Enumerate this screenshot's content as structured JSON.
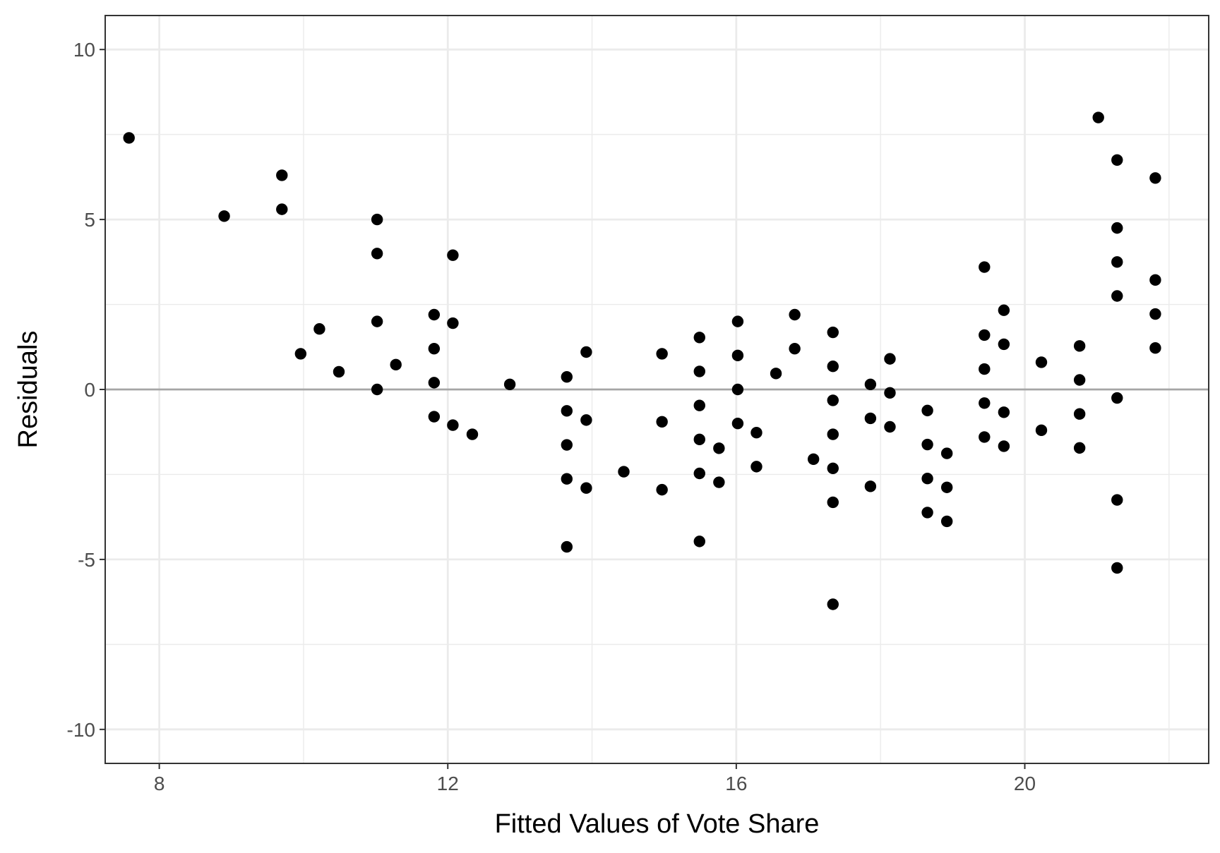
{
  "chart_data": {
    "type": "scatter",
    "title": "",
    "xlabel": "Fitted Values of Vote Share",
    "ylabel": "Residuals",
    "xlim": [
      7.25,
      22.55
    ],
    "ylim": [
      -11,
      11
    ],
    "x_ticks": [
      8,
      12,
      16,
      20
    ],
    "x_tick_labels": [
      "8",
      "12",
      "16",
      "20"
    ],
    "y_ticks": [
      -10,
      -5,
      0,
      5,
      10
    ],
    "y_tick_labels": [
      "-10",
      "-5",
      "0",
      "5",
      "10"
    ],
    "grid": true,
    "reference_line": {
      "y": 0,
      "color": "#a6a6a6"
    },
    "colors": {
      "background": "#ffffff",
      "grid": "#ebebeb",
      "panel_border": "#333333",
      "point": "#000000"
    },
    "points": [
      {
        "x": 7.58,
        "y": 7.4
      },
      {
        "x": 8.9,
        "y": 5.1
      },
      {
        "x": 9.7,
        "y": 6.3
      },
      {
        "x": 9.7,
        "y": 5.3
      },
      {
        "x": 9.96,
        "y": 1.05
      },
      {
        "x": 10.22,
        "y": 1.78
      },
      {
        "x": 10.49,
        "y": 0.52
      },
      {
        "x": 11.02,
        "y": 5.0
      },
      {
        "x": 11.02,
        "y": 4.0
      },
      {
        "x": 11.02,
        "y": 2.0
      },
      {
        "x": 11.02,
        "y": 0.0
      },
      {
        "x": 11.28,
        "y": 0.73
      },
      {
        "x": 11.81,
        "y": 2.2
      },
      {
        "x": 11.81,
        "y": 1.2
      },
      {
        "x": 11.81,
        "y": 0.2
      },
      {
        "x": 11.81,
        "y": -0.8
      },
      {
        "x": 12.07,
        "y": 3.95
      },
      {
        "x": 12.07,
        "y": 1.95
      },
      {
        "x": 12.07,
        "y": -1.05
      },
      {
        "x": 12.34,
        "y": -1.32
      },
      {
        "x": 12.86,
        "y": 0.15
      },
      {
        "x": 13.65,
        "y": 0.37
      },
      {
        "x": 13.65,
        "y": -0.63
      },
      {
        "x": 13.65,
        "y": -1.63
      },
      {
        "x": 13.65,
        "y": -2.63
      },
      {
        "x": 13.65,
        "y": -4.63
      },
      {
        "x": 13.92,
        "y": 1.1
      },
      {
        "x": 13.92,
        "y": -0.9
      },
      {
        "x": 13.92,
        "y": -2.9
      },
      {
        "x": 14.44,
        "y": -2.42
      },
      {
        "x": 14.97,
        "y": 1.05
      },
      {
        "x": 14.97,
        "y": -0.95
      },
      {
        "x": 14.97,
        "y": -2.95
      },
      {
        "x": 15.49,
        "y": 1.53
      },
      {
        "x": 15.49,
        "y": 0.53
      },
      {
        "x": 15.49,
        "y": -0.47
      },
      {
        "x": 15.49,
        "y": -1.47
      },
      {
        "x": 15.49,
        "y": -2.47
      },
      {
        "x": 15.49,
        "y": -4.47
      },
      {
        "x": 15.76,
        "y": -1.73
      },
      {
        "x": 15.76,
        "y": -2.73
      },
      {
        "x": 16.02,
        "y": 2.0
      },
      {
        "x": 16.02,
        "y": 1.0
      },
      {
        "x": 16.02,
        "y": 0.0
      },
      {
        "x": 16.02,
        "y": -1.0
      },
      {
        "x": 16.28,
        "y": -1.27
      },
      {
        "x": 16.28,
        "y": -2.27
      },
      {
        "x": 16.55,
        "y": 0.47
      },
      {
        "x": 16.81,
        "y": 2.2
      },
      {
        "x": 16.81,
        "y": 1.2
      },
      {
        "x": 17.07,
        "y": -2.05
      },
      {
        "x": 17.34,
        "y": 1.68
      },
      {
        "x": 17.34,
        "y": 0.68
      },
      {
        "x": 17.34,
        "y": -0.32
      },
      {
        "x": 17.34,
        "y": -1.32
      },
      {
        "x": 17.34,
        "y": -2.32
      },
      {
        "x": 17.34,
        "y": -3.32
      },
      {
        "x": 17.34,
        "y": -6.32
      },
      {
        "x": 17.86,
        "y": 0.15
      },
      {
        "x": 17.86,
        "y": -0.85
      },
      {
        "x": 17.86,
        "y": -2.85
      },
      {
        "x": 18.13,
        "y": 0.9
      },
      {
        "x": 18.13,
        "y": -0.1
      },
      {
        "x": 18.13,
        "y": -1.1
      },
      {
        "x": 18.65,
        "y": -0.62
      },
      {
        "x": 18.65,
        "y": -1.62
      },
      {
        "x": 18.65,
        "y": -2.62
      },
      {
        "x": 18.65,
        "y": -3.62
      },
      {
        "x": 18.92,
        "y": -1.88
      },
      {
        "x": 18.92,
        "y": -2.88
      },
      {
        "x": 18.92,
        "y": -3.88
      },
      {
        "x": 19.44,
        "y": 3.6
      },
      {
        "x": 19.44,
        "y": 1.6
      },
      {
        "x": 19.44,
        "y": 0.6
      },
      {
        "x": 19.44,
        "y": -0.4
      },
      {
        "x": 19.44,
        "y": -1.4
      },
      {
        "x": 19.71,
        "y": 2.33
      },
      {
        "x": 19.71,
        "y": 1.33
      },
      {
        "x": 19.71,
        "y": -0.67
      },
      {
        "x": 19.71,
        "y": -1.67
      },
      {
        "x": 20.23,
        "y": 0.8
      },
      {
        "x": 20.23,
        "y": -1.2
      },
      {
        "x": 20.76,
        "y": 1.28
      },
      {
        "x": 20.76,
        "y": 0.28
      },
      {
        "x": 20.76,
        "y": -0.72
      },
      {
        "x": 20.76,
        "y": -1.72
      },
      {
        "x": 21.02,
        "y": 8.0
      },
      {
        "x": 21.28,
        "y": 6.75
      },
      {
        "x": 21.28,
        "y": 4.75
      },
      {
        "x": 21.28,
        "y": 3.75
      },
      {
        "x": 21.28,
        "y": 2.75
      },
      {
        "x": 21.28,
        "y": -0.25
      },
      {
        "x": 21.28,
        "y": -3.25
      },
      {
        "x": 21.28,
        "y": -5.25
      },
      {
        "x": 21.81,
        "y": 6.22
      },
      {
        "x": 21.81,
        "y": 3.22
      },
      {
        "x": 21.81,
        "y": 2.22
      },
      {
        "x": 21.81,
        "y": 1.22
      }
    ]
  }
}
